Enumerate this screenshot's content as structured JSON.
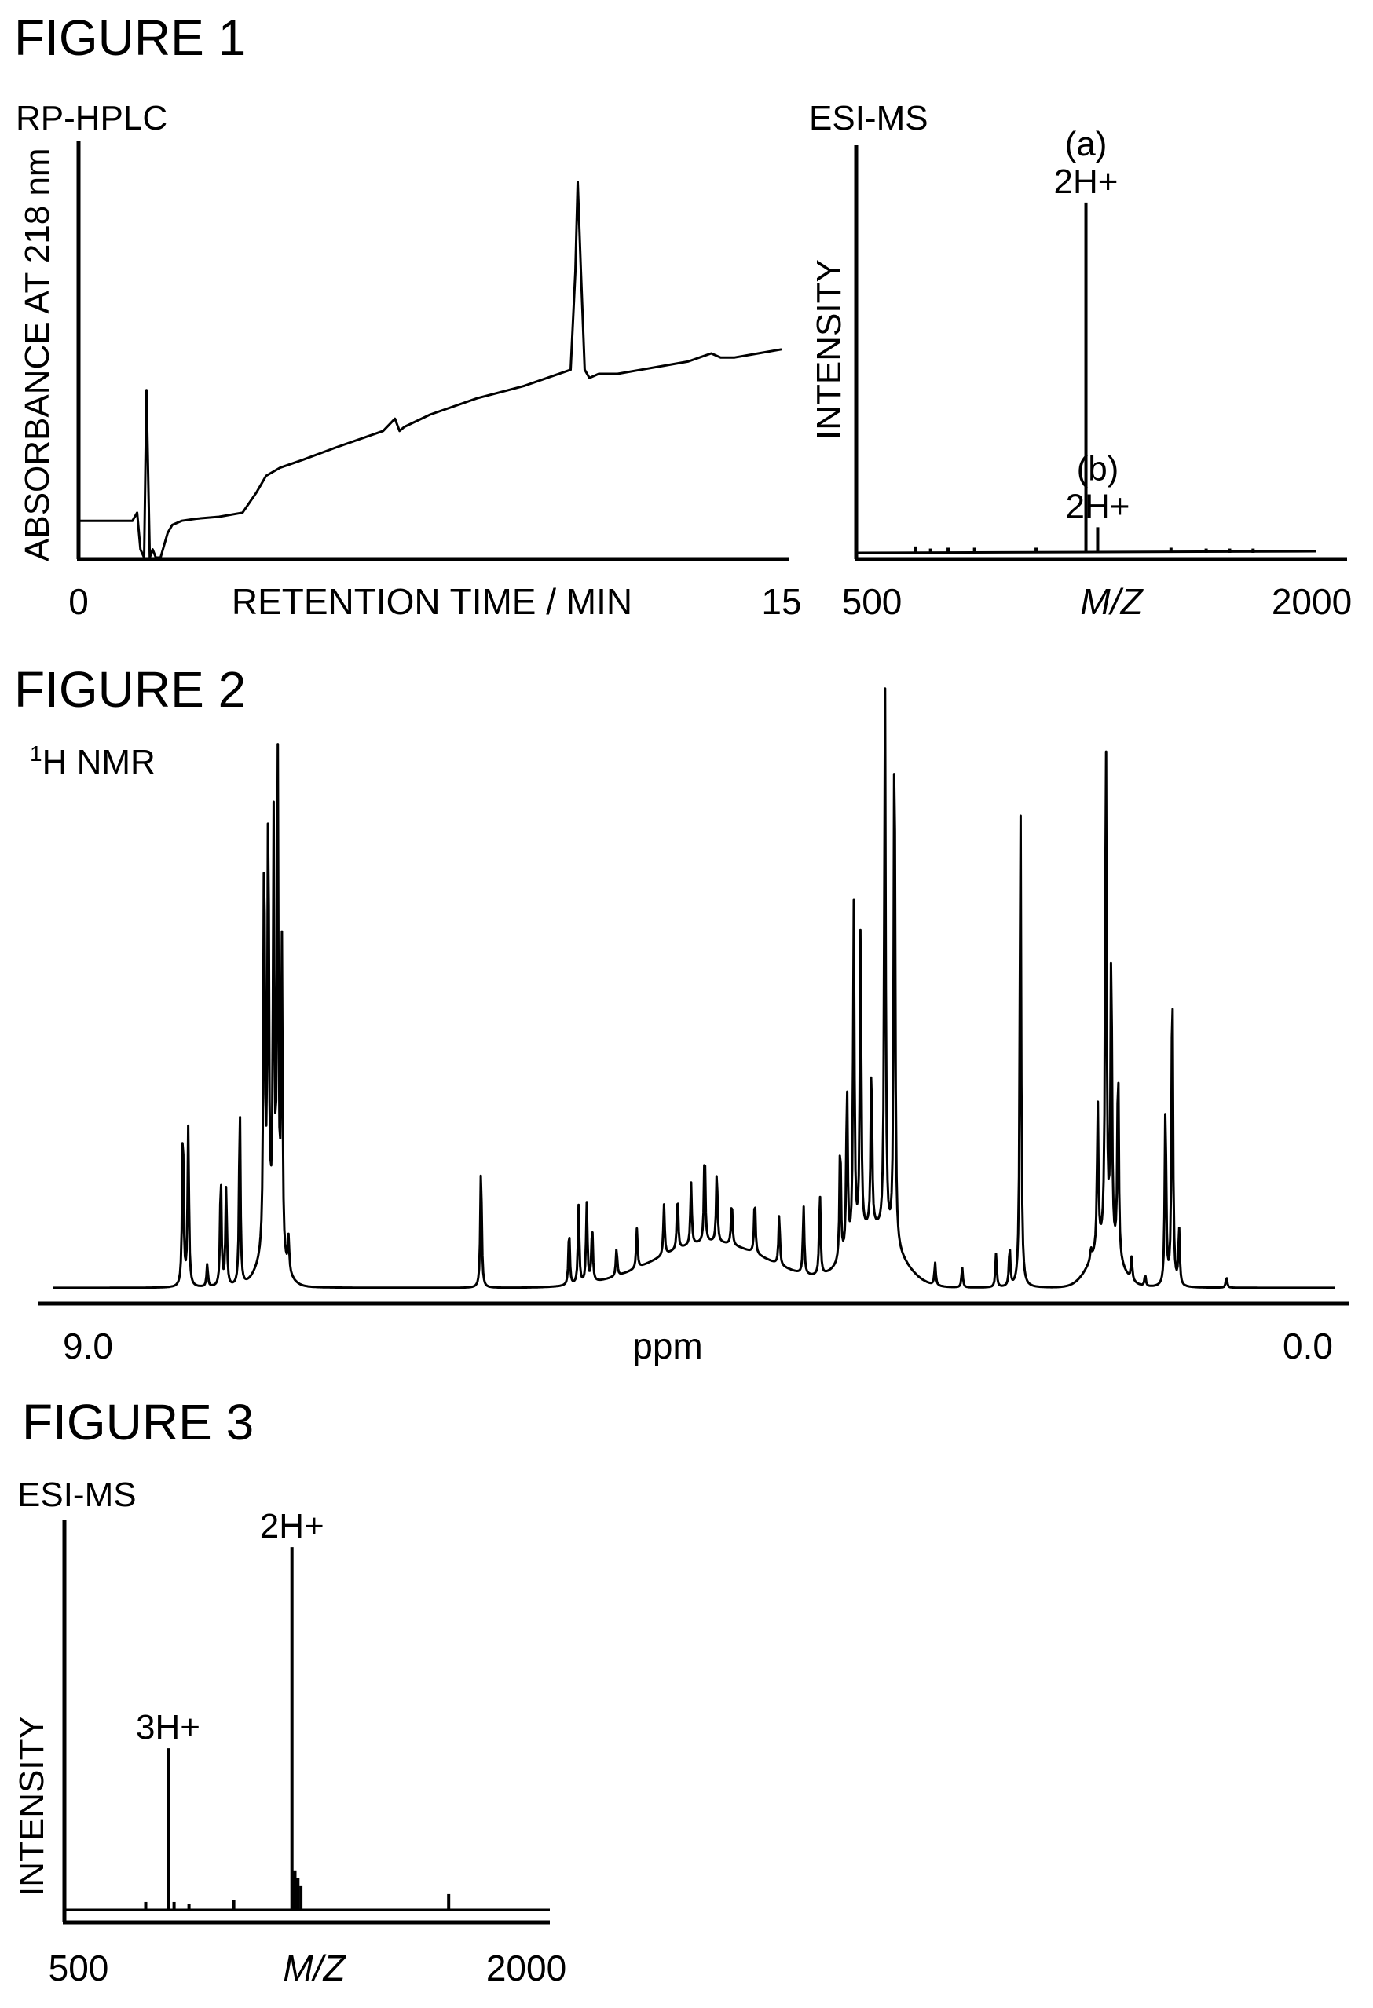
{
  "figures": {
    "fig1_title": "FIGURE 1",
    "fig2_title": "FIGURE 2",
    "fig3_title": "FIGURE 3"
  },
  "chart_data": [
    {
      "type": "line",
      "subtitle": "RP-HPLC",
      "xlabel": "RETENTION TIME / MIN",
      "ylabel": "ABSORBANCE AT 218 nm",
      "xtick_labels": [
        "0",
        "15"
      ],
      "xlim": [
        0,
        15
      ],
      "ylim": [
        0,
        1
      ],
      "x": [
        0,
        1.15,
        1.25,
        1.32,
        1.4,
        1.45,
        1.52,
        1.58,
        1.65,
        1.75,
        1.9,
        2.0,
        2.2,
        2.5,
        3.0,
        3.5,
        3.8,
        4.0,
        4.3,
        4.8,
        5.5,
        6.5,
        6.75,
        6.85,
        6.95,
        7.5,
        8.5,
        9.5,
        10.5,
        10.6,
        10.65,
        10.72,
        10.8,
        10.9,
        11.1,
        11.5,
        12.0,
        12.5,
        13.0,
        13.5,
        13.7,
        14.0,
        14.5,
        15.0
      ],
      "y": [
        0.09,
        0.09,
        0.11,
        0.02,
        0.0,
        0.41,
        0.0,
        0.02,
        0.0,
        0.0,
        0.06,
        0.08,
        0.09,
        0.095,
        0.1,
        0.11,
        0.16,
        0.2,
        0.22,
        0.24,
        0.27,
        0.31,
        0.34,
        0.31,
        0.32,
        0.35,
        0.39,
        0.42,
        0.46,
        0.7,
        0.92,
        0.7,
        0.46,
        0.44,
        0.45,
        0.45,
        0.46,
        0.47,
        0.48,
        0.5,
        0.49,
        0.49,
        0.5,
        0.51
      ],
      "annotations": []
    },
    {
      "type": "bar",
      "subtitle": "ESI-MS",
      "xlabel": "M/Z",
      "ylabel": "INTENSITY",
      "xtick_labels": [
        "500",
        "2000"
      ],
      "xlim": [
        500,
        2000
      ],
      "ylim": [
        0,
        1
      ],
      "x": [
        650,
        700,
        760,
        850,
        1060,
        1230,
        1270,
        1520,
        1640,
        1720,
        1800
      ],
      "y": [
        0.015,
        0.01,
        0.012,
        0.012,
        0.012,
        0.82,
        0.06,
        0.012,
        0.01,
        0.01,
        0.01
      ],
      "annotations": [
        {
          "x": 1230,
          "label_top": "(a)",
          "label_bottom": "2H+"
        },
        {
          "x": 1270,
          "label_top": "(b)",
          "label_bottom": "2H+"
        }
      ]
    },
    {
      "type": "line",
      "subtitle": "H NMR",
      "subtitle_sup": "1",
      "xlabel": "ppm",
      "xtick_labels": [
        "9.0",
        "0.0"
      ],
      "xlim": [
        9.0,
        0.0
      ],
      "ylim": [
        0,
        1
      ],
      "peaks": [
        {
          "x": 8.3,
          "h": 0.3
        },
        {
          "x": 8.26,
          "h": 0.28
        },
        {
          "x": 8.12,
          "h": 0.04
        },
        {
          "x": 8.02,
          "h": 0.2
        },
        {
          "x": 7.98,
          "h": 0.18
        },
        {
          "x": 7.88,
          "h": 0.32
        },
        {
          "x": 7.7,
          "h": 0.76
        },
        {
          "x": 7.67,
          "h": 0.8
        },
        {
          "x": 7.63,
          "h": 0.74
        },
        {
          "x": 7.6,
          "h": 0.86
        },
        {
          "x": 7.57,
          "h": 0.56
        },
        {
          "x": 7.52,
          "h": 0.06
        },
        {
          "x": 6.1,
          "h": 0.22
        },
        {
          "x": 5.45,
          "h": 0.1
        },
        {
          "x": 5.38,
          "h": 0.14
        },
        {
          "x": 5.32,
          "h": 0.14
        },
        {
          "x": 5.28,
          "h": 0.1
        },
        {
          "x": 5.1,
          "h": 0.05
        },
        {
          "x": 4.95,
          "h": 0.07
        },
        {
          "x": 4.75,
          "h": 0.09
        },
        {
          "x": 4.65,
          "h": 0.1
        },
        {
          "x": 4.55,
          "h": 0.11
        },
        {
          "x": 4.45,
          "h": 0.17
        },
        {
          "x": 4.36,
          "h": 0.13
        },
        {
          "x": 4.25,
          "h": 0.08
        },
        {
          "x": 4.08,
          "h": 0.1
        },
        {
          "x": 3.9,
          "h": 0.09
        },
        {
          "x": 3.72,
          "h": 0.12
        },
        {
          "x": 3.6,
          "h": 0.15
        },
        {
          "x": 3.45,
          "h": 0.22
        },
        {
          "x": 3.4,
          "h": 0.3
        },
        {
          "x": 3.35,
          "h": 0.6
        },
        {
          "x": 3.3,
          "h": 0.55
        },
        {
          "x": 3.22,
          "h": 0.3
        },
        {
          "x": 3.12,
          "h": 0.98
        },
        {
          "x": 3.05,
          "h": 0.98
        },
        {
          "x": 2.75,
          "h": 0.04
        },
        {
          "x": 2.55,
          "h": 0.035
        },
        {
          "x": 2.3,
          "h": 0.06
        },
        {
          "x": 2.2,
          "h": 0.07
        },
        {
          "x": 2.12,
          "h": 0.86
        },
        {
          "x": 1.6,
          "h": 0.02
        },
        {
          "x": 1.55,
          "h": 0.26
        },
        {
          "x": 1.49,
          "h": 0.92
        },
        {
          "x": 1.45,
          "h": 0.54
        },
        {
          "x": 1.4,
          "h": 0.36
        },
        {
          "x": 1.3,
          "h": 0.04
        },
        {
          "x": 1.2,
          "h": 0.02
        },
        {
          "x": 1.05,
          "h": 0.33
        },
        {
          "x": 1.0,
          "h": 0.58
        },
        {
          "x": 0.95,
          "h": 0.1
        },
        {
          "x": 0.6,
          "h": 0.02
        }
      ],
      "annotations": []
    },
    {
      "type": "bar",
      "subtitle": "ESI-MS",
      "xlabel": "M/Z",
      "ylabel": "INTENSITY",
      "xtick_labels": [
        "500",
        "2000"
      ],
      "xlim": [
        500,
        2000
      ],
      "ylim": [
        0,
        1
      ],
      "x": [
        725,
        800,
        820,
        870,
        1020,
        1215,
        1225,
        1235,
        1245,
        1740
      ],
      "y": [
        0.02,
        0.41,
        0.02,
        0.015,
        0.025,
        0.92,
        0.1,
        0.08,
        0.06,
        0.04
      ],
      "annotations": [
        {
          "x": 800,
          "label_top": "",
          "label_bottom": "3H+"
        },
        {
          "x": 1215,
          "label_top": "",
          "label_bottom": "2H+"
        }
      ]
    }
  ]
}
